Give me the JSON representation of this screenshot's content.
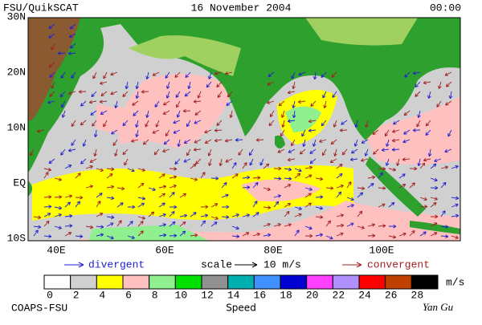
{
  "header": {
    "title": "FSU/QuikSCAT",
    "date": "16 November 2004",
    "time": "00:00"
  },
  "map": {
    "lat_labels": [
      "30N",
      "20N",
      "10N",
      "EQ",
      "10S"
    ],
    "lon_labels": [
      "40E",
      "60E",
      "80E",
      "100E"
    ]
  },
  "legend": {
    "divergent": "divergent",
    "scale": "scale",
    "scale_value": "10 m/s",
    "convergent": "convergent"
  },
  "colorbar": {
    "ticks": [
      0,
      2,
      4,
      6,
      8,
      10,
      12,
      14,
      16,
      18,
      20,
      22,
      24,
      26,
      28
    ],
    "unit": "m/s",
    "label": "Speed",
    "colors": [
      "#ffffff",
      "#d0d0d0",
      "#ffff00",
      "#ffc0c0",
      "#90f090",
      "#00e000",
      "#909090",
      "#00b0b0",
      "#4090ff",
      "#0000d0",
      "#ff40ff",
      "#b090ff",
      "#ff0000",
      "#c04000",
      "#000000"
    ]
  },
  "footer": {
    "left": "COAPS-FSU",
    "right": "Yan Gu"
  }
}
